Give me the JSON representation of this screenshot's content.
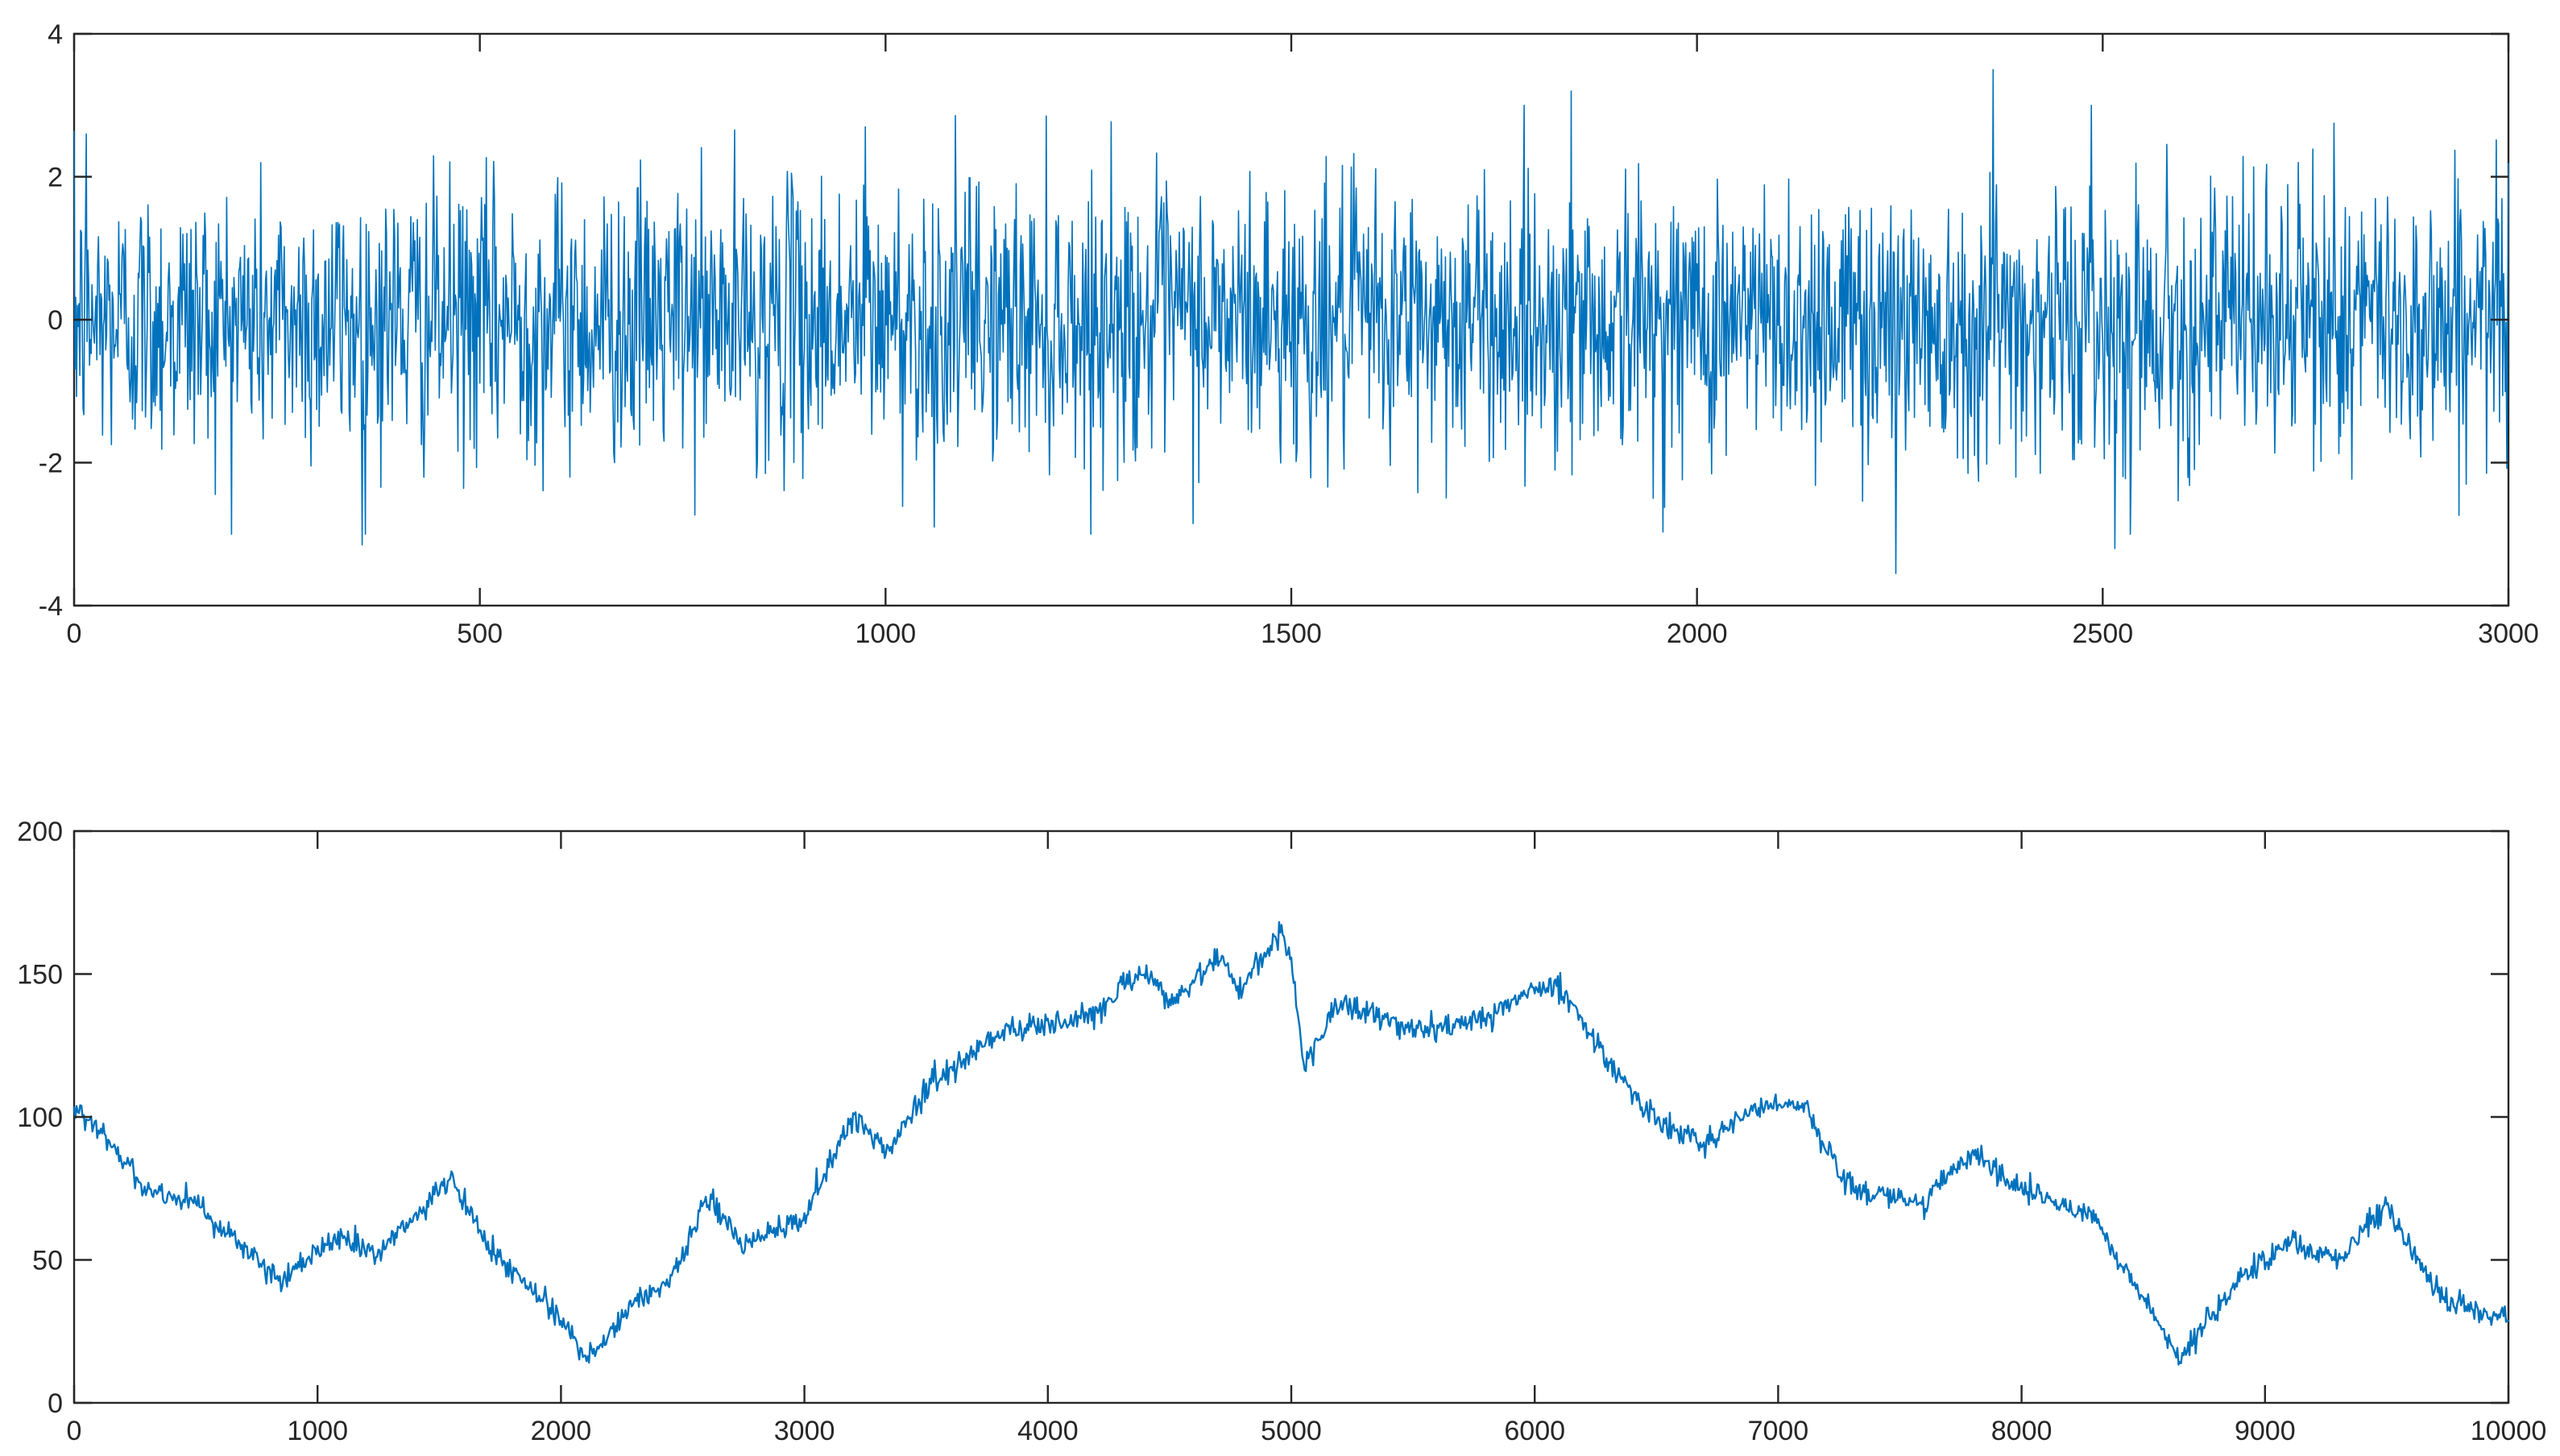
{
  "chart_data": [
    {
      "type": "line",
      "title": "",
      "xlabel": "",
      "ylabel": "",
      "xlim": [
        0,
        3000
      ],
      "ylim": [
        -4,
        4
      ],
      "xticks": [
        "0",
        "500",
        "1000",
        "1500",
        "2000",
        "2500",
        "3000"
      ],
      "yticks": [
        "-4",
        "-2",
        "0",
        "2",
        "4"
      ],
      "grid": false,
      "legend": "none",
      "series": [
        {
          "color": "#0072bd",
          "description_kind": "white-noise",
          "n_points": 3001,
          "peaks": [
            {
              "x": 15,
              "y": 2.6
            },
            {
              "x": 355,
              "y": -3.15
            },
            {
              "x": 975,
              "y": 2.7
            },
            {
              "x": 1060,
              "y": -2.9
            },
            {
              "x": 1845,
              "y": 3.2
            },
            {
              "x": 2245,
              "y": -3.55
            },
            {
              "x": 2365,
              "y": 3.5
            },
            {
              "x": 2515,
              "y": -3.2
            },
            {
              "x": 2785,
              "y": 2.75
            }
          ]
        }
      ]
    },
    {
      "type": "line",
      "title": "",
      "xlabel": "",
      "ylabel": "",
      "xlim": [
        0,
        10000
      ],
      "ylim": [
        0,
        200
      ],
      "xticks": [
        "0",
        "1000",
        "2000",
        "3000",
        "4000",
        "5000",
        "6000",
        "7000",
        "8000",
        "9000",
        "10000"
      ],
      "yticks": [
        "0",
        "50",
        "100",
        "150",
        "200"
      ],
      "grid": false,
      "legend": "none",
      "series": [
        {
          "color": "#0072bd",
          "description_kind": "random-walk",
          "x": [
            0,
            300,
            500,
            850,
            1050,
            1250,
            1550,
            1700,
            2000,
            2100,
            2300,
            2450,
            2600,
            2750,
            3000,
            3200,
            3350,
            3500,
            3800,
            4000,
            4200,
            4400,
            4500,
            4700,
            4800,
            4950,
            5000,
            5050,
            5200,
            5500,
            5800,
            6000,
            6100,
            6300,
            6500,
            6700,
            6900,
            7100,
            7300,
            7600,
            7800,
            8000,
            8300,
            8650,
            8900,
            9100,
            9300,
            9500,
            9700,
            9900,
            10000
          ],
          "values": [
            105,
            75,
            70,
            42,
            58,
            52,
            78,
            55,
            30,
            15,
            35,
            42,
            72,
            55,
            65,
            100,
            88,
            110,
            130,
            132,
            137,
            152,
            140,
            155,
            145,
            165,
            155,
            118,
            140,
            130,
            135,
            145,
            145,
            120,
            98,
            90,
            103,
            105,
            75,
            70,
            88,
            75,
            65,
            15,
            45,
            57,
            50,
            70,
            38,
            32,
            28
          ]
        }
      ]
    }
  ]
}
